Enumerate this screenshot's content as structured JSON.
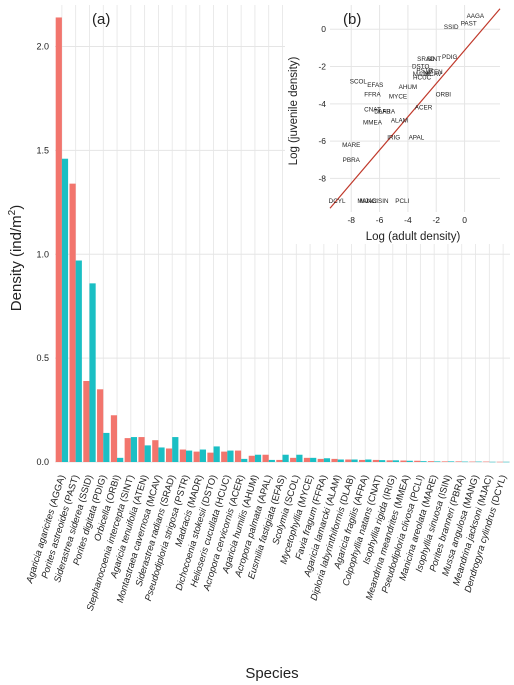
{
  "colors": {
    "adult": "#F2756D",
    "juvenile": "#1ABFC4",
    "grid": "#E5E5E5",
    "fit_line": "#C0392B",
    "axis_text": "#444444"
  },
  "chart_data": [
    {
      "type": "bar",
      "panel_label": "(a)",
      "xlabel": "Species",
      "ylabel": "Density (ind/m",
      "ylabel_sup": "2",
      "ylabel_close": ")",
      "ylim": [
        0,
        2.2
      ],
      "yticks": [
        "0.0",
        "0.5",
        "1.0",
        "1.5",
        "2.0"
      ],
      "grid": true,
      "categories": [
        {
          "italic": "Agaricia agaricites",
          "code": " (AGGA)"
        },
        {
          "italic": "Porites astreoides",
          "code": " (PAST)"
        },
        {
          "italic": "Siderastrea siderea",
          "code": " (SSID)"
        },
        {
          "italic": "Porites digitata",
          "code": " (PDIG)"
        },
        {
          "italic": "Orbicella",
          "code": " (ORBI)"
        },
        {
          "italic": "Stephanocoenia intercepta",
          "code": " (SINT)"
        },
        {
          "italic": "Agaricia tenuifolia",
          "code": " (ATEN)"
        },
        {
          "italic": "Montastraea cavernosa",
          "code": " (MCAV)"
        },
        {
          "italic": "Siderastrea radians",
          "code": " (SRAD)"
        },
        {
          "italic": "Pseudodiploria strigosa",
          "code": " (PSTR)"
        },
        {
          "italic": "Madracis",
          "code": " (MADR)"
        },
        {
          "italic": "Dichocoenia stokesii",
          "code": " (DSTO)"
        },
        {
          "italic": "Helioseris cucullata",
          "code": " (HCUC)"
        },
        {
          "italic": "Acropora cervicornis",
          "code": " (ACER)"
        },
        {
          "italic": "Agaricia humilis",
          "code": " (AHUM)"
        },
        {
          "italic": "Acropora palmata",
          "code": " (APAL)"
        },
        {
          "italic": "Eusmilia fastigiata",
          "code": " (EFAS)"
        },
        {
          "italic": "Scolymia",
          "code": " (SCOL)"
        },
        {
          "italic": "Mycetophyllia",
          "code": " (MYCE)"
        },
        {
          "italic": "Favia fragum",
          "code": " (FFRA)"
        },
        {
          "italic": "Agaricia lamarcki",
          "code": " (ALAM)"
        },
        {
          "italic": "Diploria labyrinthiformis",
          "code": " (DLAB)"
        },
        {
          "italic": "Agaricia fragilis",
          "code": " (AFRA)"
        },
        {
          "italic": "Colpophyllia natans",
          "code": " (CNAT)"
        },
        {
          "italic": "Isophyllia rigida",
          "code": " (IRIG)"
        },
        {
          "italic": "Meandrina meandrites",
          "code": " (MMEA)"
        },
        {
          "italic": "Pseudodiploria clivosa",
          "code": " (PCLI)"
        },
        {
          "italic": "Manicina areolata",
          "code": " (MARE)"
        },
        {
          "italic": "Isophyllia sinuosa",
          "code": " (ISIN)"
        },
        {
          "italic": "Porites branneri",
          "code": " (PBRA)"
        },
        {
          "italic": "Mussa angulosa",
          "code": " (MANG)"
        },
        {
          "italic": "Meandrina jacksoni",
          "code": " (MJAC)"
        },
        {
          "italic": "Dendrogyra cylindrus",
          "code": " (DCYL)"
        }
      ],
      "series": [
        {
          "key": "adult",
          "values": [
            2.14,
            1.34,
            0.39,
            0.35,
            0.225,
            0.115,
            0.12,
            0.105,
            0.065,
            0.06,
            0.05,
            0.045,
            0.05,
            0.055,
            0.03,
            0.035,
            0.01,
            0.02,
            0.02,
            0.015,
            0.015,
            0.012,
            0.01,
            0.01,
            0.008,
            0.007,
            0.006,
            0.004,
            0.003,
            0.003,
            0.002,
            0.002,
            0.001
          ]
        },
        {
          "key": "juvenile",
          "values": [
            1.46,
            0.97,
            0.86,
            0.14,
            0.02,
            0.12,
            0.08,
            0.07,
            0.12,
            0.055,
            0.06,
            0.075,
            0.055,
            0.015,
            0.035,
            0.01,
            0.035,
            0.035,
            0.02,
            0.018,
            0.012,
            0.012,
            0.012,
            0.009,
            0.008,
            0.006,
            0.004,
            0.003,
            0.003,
            0.002,
            0.002,
            0.001,
            0.001
          ]
        }
      ]
    },
    {
      "type": "scatter",
      "panel_label": "(b)",
      "xlabel": "Log (adult density)",
      "ylabel": "Log (juvenile density)",
      "xlim": [
        -9.5,
        2.5
      ],
      "ylim": [
        -9.8,
        1.3
      ],
      "xticks": [
        -8,
        -6,
        -4,
        -2,
        0
      ],
      "yticks": [
        0,
        -2,
        -4,
        -6,
        -8
      ],
      "grid": true,
      "fit_line": {
        "x": [
          -9.5,
          2.5
        ],
        "y": [
          -9.6,
          1.1
        ]
      },
      "points": [
        {
          "label": "AAGA",
          "x": 0.76,
          "y": 0.71
        },
        {
          "label": "PAST",
          "x": 0.29,
          "y": 0.3
        },
        {
          "label": "SSID",
          "x": -0.94,
          "y": 0.12
        },
        {
          "label": "PDIG",
          "x": -1.05,
          "y": -1.5
        },
        {
          "label": "SINT",
          "x": -2.16,
          "y": -1.6
        },
        {
          "label": "SRAD",
          "x": -2.73,
          "y": -1.6
        },
        {
          "label": "ATEN",
          "x": -2.12,
          "y": -2.3
        },
        {
          "label": "MCAV",
          "x": -2.25,
          "y": -2.4
        },
        {
          "label": "DSTO",
          "x": -3.1,
          "y": -2.0
        },
        {
          "label": "PSTR",
          "x": -2.81,
          "y": -2.2
        },
        {
          "label": "MADR",
          "x": -3.0,
          "y": -2.4
        },
        {
          "label": "HCUC",
          "x": -3.0,
          "y": -2.6
        },
        {
          "label": "SCOL",
          "x": -7.5,
          "y": -2.8
        },
        {
          "label": "EFAS",
          "x": -6.3,
          "y": -3.0
        },
        {
          "label": "AHUM",
          "x": -4.0,
          "y": -3.1
        },
        {
          "label": "FFRA",
          "x": -6.5,
          "y": -3.5
        },
        {
          "label": "MYCE",
          "x": -4.7,
          "y": -3.6
        },
        {
          "label": "ORBI",
          "x": -1.5,
          "y": -3.5
        },
        {
          "label": "CNAT",
          "x": -6.5,
          "y": -4.3
        },
        {
          "label": "DLAB",
          "x": -5.8,
          "y": -4.4
        },
        {
          "label": "AFRA",
          "x": -5.5,
          "y": -4.4
        },
        {
          "label": "ACER",
          "x": -2.9,
          "y": -4.2
        },
        {
          "label": "ALAM",
          "x": -4.6,
          "y": -4.9
        },
        {
          "label": "MMEA",
          "x": -6.5,
          "y": -5.0
        },
        {
          "label": "IRIG",
          "x": -5.0,
          "y": -5.8
        },
        {
          "label": "APAL",
          "x": -3.4,
          "y": -5.8
        },
        {
          "label": "MARE",
          "x": -8.0,
          "y": -6.2
        },
        {
          "label": "PBRA",
          "x": -8.0,
          "y": -7.0
        },
        {
          "label": "DCYL",
          "x": -9.0,
          "y": -9.2
        },
        {
          "label": "MANG",
          "x": -6.9,
          "y": -9.2
        },
        {
          "label": "MJAC",
          "x": -6.8,
          "y": -9.2
        },
        {
          "label": "ISIN",
          "x": -5.8,
          "y": -9.2
        },
        {
          "label": "PCLI",
          "x": -4.4,
          "y": -9.2
        }
      ]
    }
  ]
}
